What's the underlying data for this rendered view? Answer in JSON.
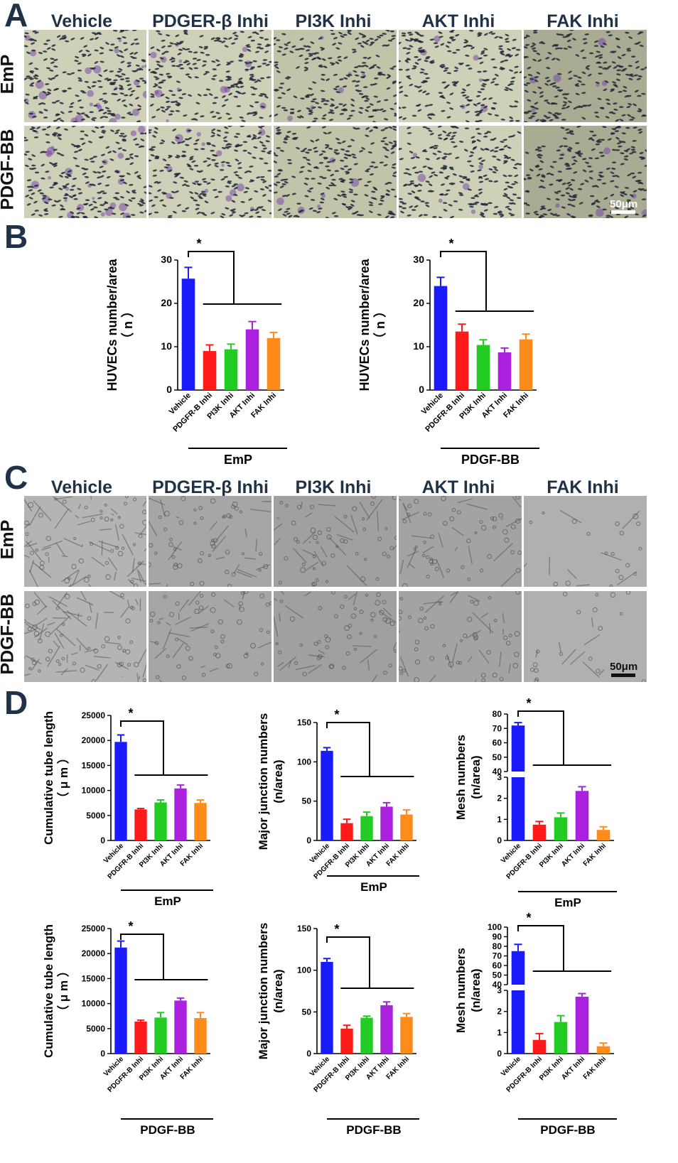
{
  "panels": {
    "A": {
      "letter": "A",
      "columns": [
        "Vehicle",
        "PDGER-β Inhi",
        "PI3K Inhi",
        "AKT Inhi",
        "FAK Inhi"
      ],
      "rows": [
        "EmP",
        "PDGF-BB"
      ],
      "scale_bar": "50μm"
    },
    "B": {
      "letter": "B"
    },
    "C": {
      "letter": "C",
      "columns": [
        "Vehicle",
        "PDGER-β Inhi",
        "PI3K Inhi",
        "AKT Inhi",
        "FAK Inhi"
      ],
      "rows": [
        "EmP",
        "PDGF-BB"
      ],
      "scale_bar": "50μm"
    },
    "D": {
      "letter": "D"
    }
  },
  "colors": {
    "Vehicle": "#1a1aff",
    "PDGFR-B Inhi": "#ff1a1a",
    "PI3K Inhi": "#22cc22",
    "AKT Inhi": "#aa22dd",
    "FAK Inhi": "#ff8c1a"
  },
  "chart_data": [
    {
      "id": "B-EmP",
      "type": "bar",
      "categories": [
        "Vehicle",
        "PDGFR-B Inhi",
        "PI3K Inhi",
        "AKT Inhi",
        "FAK Inhi"
      ],
      "values": [
        25.7,
        9.0,
        9.4,
        14.0,
        12.0
      ],
      "errors": [
        2.6,
        1.4,
        1.2,
        1.8,
        1.3
      ],
      "ylabel": "HUVECs number/area\n（ n ）",
      "yticks": [
        0,
        10,
        20,
        30
      ],
      "ylim": [
        0,
        30
      ],
      "group_label": "EmP",
      "significance": "*"
    },
    {
      "id": "B-PDGF",
      "type": "bar",
      "categories": [
        "Vehicle",
        "PDGFR-B Inhi",
        "PI3K Inhi",
        "AKT Inhi",
        "FAK Inhi"
      ],
      "values": [
        24.0,
        13.5,
        10.4,
        8.7,
        11.7
      ],
      "errors": [
        2.0,
        1.7,
        1.2,
        1.0,
        1.2
      ],
      "ylabel": "HUVECs number/area\n（ n ）",
      "yticks": [
        0,
        10,
        20,
        30
      ],
      "ylim": [
        0,
        30
      ],
      "group_label": "PDGF-BB",
      "significance": "*"
    },
    {
      "id": "D-tube-EmP",
      "type": "bar",
      "categories": [
        "Vehicle",
        "PDGFR-B Inhi",
        "PI3K Inhi",
        "AKT Inhi",
        "FAK Inhi"
      ],
      "values": [
        19700,
        6200,
        7600,
        10400,
        7500
      ],
      "errors": [
        1400,
        200,
        500,
        700,
        600
      ],
      "ylabel": "Cumulative tube length\n（ μ m ）",
      "yticks": [
        0,
        5000,
        10000,
        15000,
        20000,
        25000
      ],
      "ylim": [
        0,
        25000
      ],
      "group_label": "EmP",
      "significance": "*"
    },
    {
      "id": "D-junction-EmP",
      "type": "bar",
      "categories": [
        "Vehicle",
        "PDGFR-B Inhi",
        "PI3K Inhi",
        "AKT Inhi",
        "FAK Inhi"
      ],
      "values": [
        114,
        22,
        31,
        43,
        33
      ],
      "errors": [
        4,
        5,
        5,
        5,
        6
      ],
      "ylabel": "Major junction numbers\n(n/area)",
      "yticks": [
        0,
        50,
        100,
        150
      ],
      "ylim": [
        0,
        150
      ],
      "group_label": "EmP",
      "significance": "*"
    },
    {
      "id": "D-mesh-EmP",
      "type": "bar",
      "categories": [
        "Vehicle",
        "PDGFR-B Inhi",
        "PI3K Inhi",
        "AKT Inhi",
        "FAK Inhi"
      ],
      "values": [
        72,
        0.75,
        1.1,
        2.35,
        0.5
      ],
      "errors": [
        2,
        0.15,
        0.2,
        0.2,
        0.15
      ],
      "ylabel": "Mesh numbers\n(n/area)",
      "yticks_lower": [
        0,
        1,
        2,
        3
      ],
      "yticks_upper": [
        40,
        50,
        60,
        70,
        80
      ],
      "broken_axis": true,
      "group_label": "EmP",
      "significance": "*"
    },
    {
      "id": "D-tube-PDGF",
      "type": "bar",
      "categories": [
        "Vehicle",
        "PDGFR-B Inhi",
        "PI3K Inhi",
        "AKT Inhi",
        "FAK Inhi"
      ],
      "values": [
        21200,
        6400,
        7200,
        10600,
        7100
      ],
      "errors": [
        1300,
        300,
        1000,
        500,
        1100
      ],
      "ylabel": "Cumulative tube length\n（ μ m ）",
      "yticks": [
        0,
        5000,
        10000,
        15000,
        20000,
        25000
      ],
      "ylim": [
        0,
        25000
      ],
      "group_label": "PDGF-BB",
      "significance": "*"
    },
    {
      "id": "D-junction-PDGF",
      "type": "bar",
      "categories": [
        "Vehicle",
        "PDGFR-B Inhi",
        "PI3K Inhi",
        "AKT Inhi",
        "FAK Inhi"
      ],
      "values": [
        110,
        30,
        43,
        58,
        44
      ],
      "errors": [
        4,
        4,
        2,
        4,
        4
      ],
      "ylabel": "Major junction numbers\n(n/area)",
      "yticks": [
        0,
        50,
        100,
        150
      ],
      "ylim": [
        0,
        150
      ],
      "group_label": "PDGF-BB",
      "significance": "*"
    },
    {
      "id": "D-mesh-PDGF",
      "type": "bar",
      "categories": [
        "Vehicle",
        "PDGFR-B Inhi",
        "PI3K Inhi",
        "AKT Inhi",
        "FAK Inhi"
      ],
      "values": [
        75,
        0.65,
        1.5,
        2.7,
        0.35
      ],
      "errors": [
        7,
        0.3,
        0.3,
        0.15,
        0.15
      ],
      "ylabel": "Mesh numbers\n(n/area)",
      "yticks_lower": [
        0,
        1,
        2,
        3
      ],
      "yticks_upper": [
        40,
        50,
        60,
        70,
        80,
        90,
        100
      ],
      "broken_axis": true,
      "group_label": "PDGF-BB",
      "significance": "*"
    }
  ]
}
